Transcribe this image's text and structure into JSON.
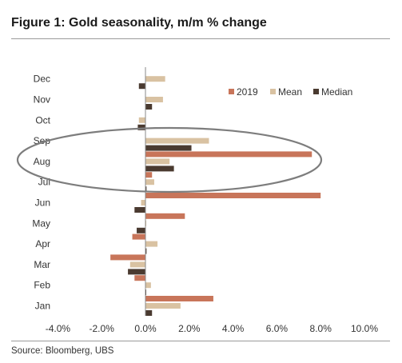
{
  "figure": {
    "title": "Figure 1: Gold seasonality, m/m % change",
    "source": "Source:  Bloomberg, UBS"
  },
  "chart_data": {
    "type": "bar",
    "orientation": "horizontal",
    "categories": [
      "Jan",
      "Feb",
      "Mar",
      "Apr",
      "May",
      "Jun",
      "Jul",
      "Aug",
      "Sep",
      "Oct",
      "Nov",
      "Dec"
    ],
    "series": [
      {
        "name": "2019",
        "color": "#c8755a",
        "values": [
          3.1,
          -0.5,
          -1.6,
          -0.6,
          1.8,
          8.0,
          0.3,
          7.6,
          null,
          null,
          null,
          null
        ]
      },
      {
        "name": "Mean",
        "color": "#d9c2a2",
        "values": [
          1.6,
          0.25,
          -0.7,
          0.55,
          0.0,
          -0.2,
          0.4,
          1.1,
          2.9,
          -0.3,
          0.8,
          0.9
        ]
      },
      {
        "name": "Median",
        "color": "#4a3a30",
        "values": [
          0.3,
          0.0,
          -0.8,
          0.05,
          -0.4,
          -0.5,
          0.05,
          1.3,
          2.1,
          -0.35,
          0.3,
          -0.3
        ]
      }
    ],
    "xlim": [
      -4.0,
      10.0
    ],
    "ticks": [
      "-4.0%",
      "-2.0%",
      "0.0%",
      "2.0%",
      "4.0%",
      "6.0%",
      "8.0%",
      "10.0%"
    ],
    "tick_values": [
      -4,
      -2,
      0,
      2,
      4,
      6,
      8,
      10
    ],
    "grid": false,
    "legend_position": "top-right",
    "annotation": "grey ellipse highlighting Jul–Sep"
  }
}
